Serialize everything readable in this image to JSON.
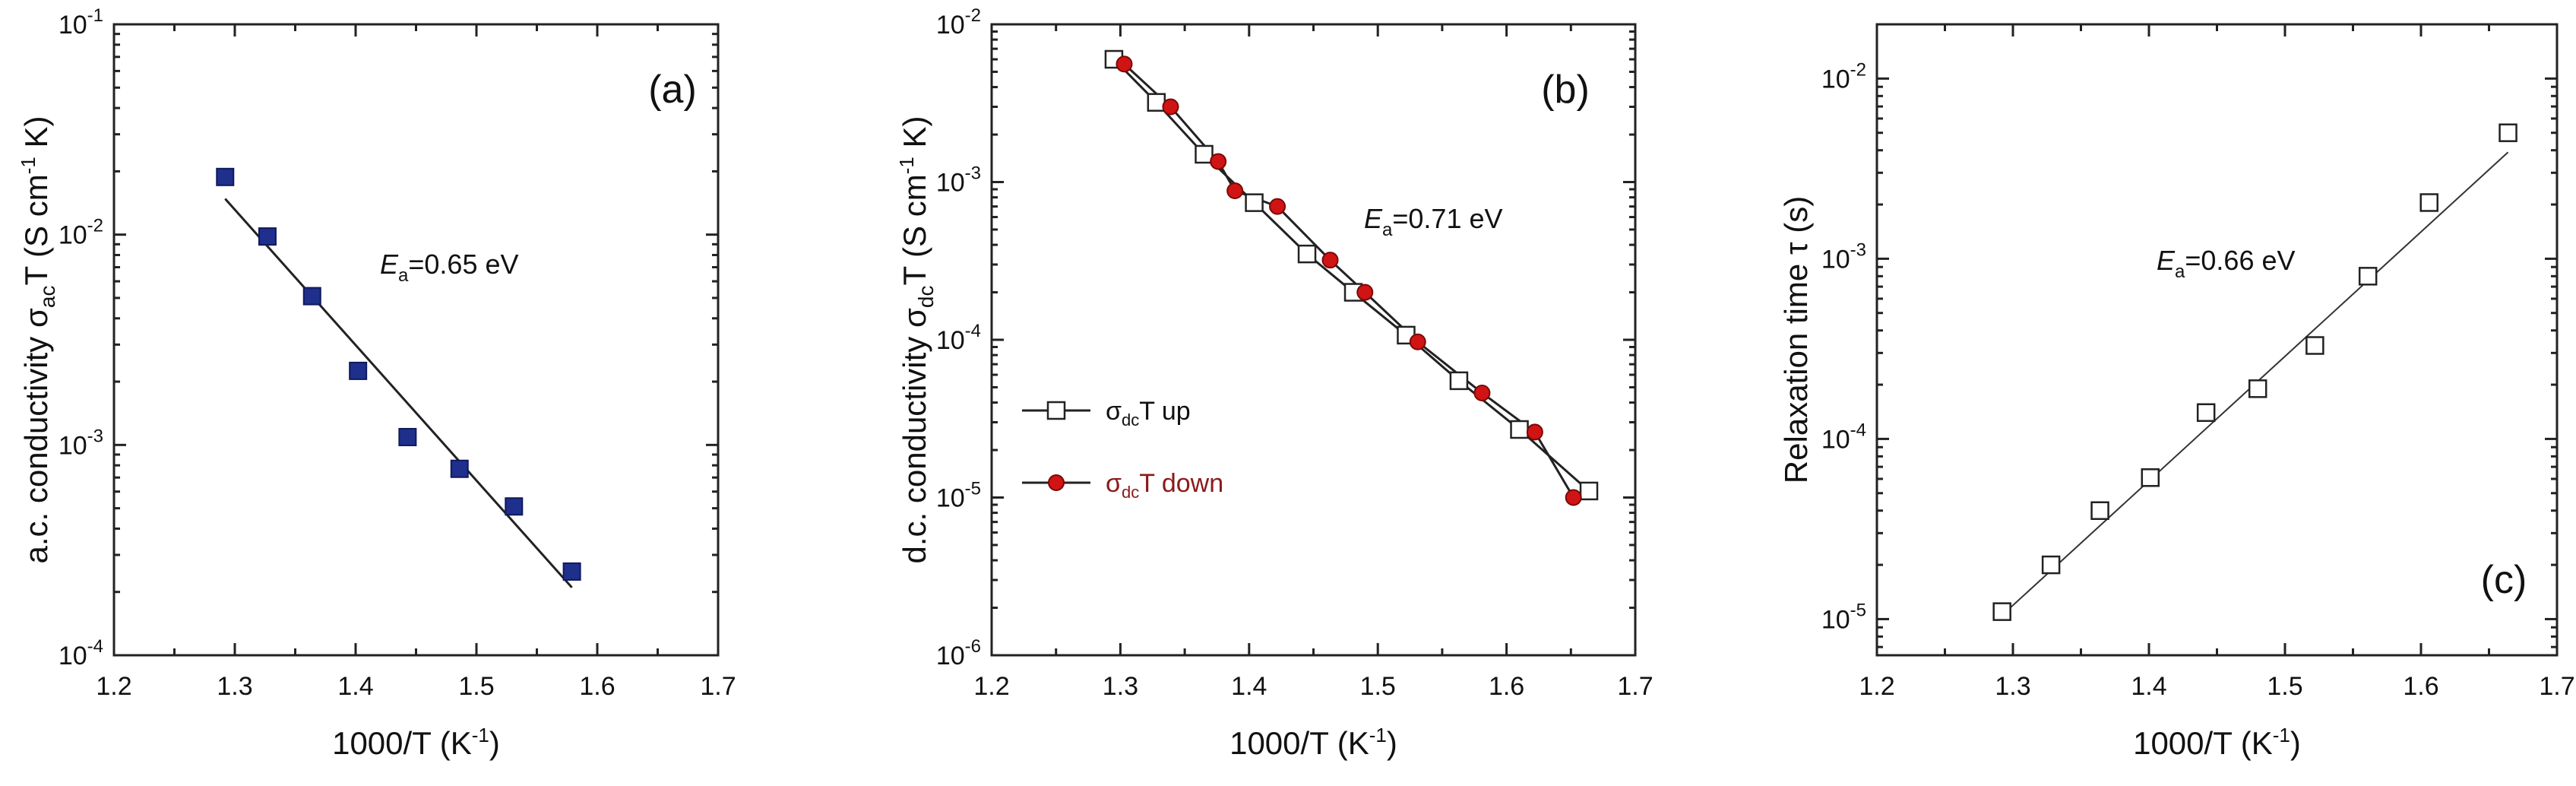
{
  "colors": {
    "axis": "#222222",
    "square_fill_a": "#1f2f8c",
    "square_stroke_a": "#10195a",
    "circle_fill": "#d01414",
    "circle_stroke": "#7a0808",
    "open_square": "#ffffff",
    "legend_down_text": "#8b1a1a"
  },
  "chart_data": [
    {
      "id": "a",
      "type": "scatter",
      "panel_label": "(a)",
      "xlabel": "1000/T (K⁻¹)",
      "ylabel": "a.c. conductivity σₐᴄT (S cm⁻¹ K)",
      "ylabel_parts": [
        "a.c. conductivity ",
        "σ",
        "ac",
        "T (S cm",
        "-1",
        " K)"
      ],
      "xlim": [
        1.2,
        1.7
      ],
      "ylim": [
        0.0001,
        0.1
      ],
      "yscale": "log",
      "xticks": [
        "1.2",
        "1.3",
        "1.4",
        "1.5",
        "1.6",
        "1.7"
      ],
      "yticks": [
        {
          "base": "10",
          "exp": "-4"
        },
        {
          "base": "10",
          "exp": "-3"
        },
        {
          "base": "10",
          "exp": "-2"
        },
        {
          "base": "10",
          "exp": "-1"
        }
      ],
      "annotation": {
        "symbol": "E",
        "sub": "a",
        "text": "=0.65 eV"
      },
      "series": [
        {
          "name": "σacT",
          "marker": "filled-square",
          "x": [
            1.292,
            1.327,
            1.364,
            1.402,
            1.443,
            1.486,
            1.531,
            1.579
          ],
          "y": [
            0.0188,
            0.0098,
            0.0051,
            0.00225,
            0.00109,
            0.00077,
            0.00051,
            0.00025
          ]
        }
      ],
      "fit": {
        "x": [
          1.292,
          1.579
        ],
        "y": [
          0.0148,
          0.00021
        ]
      }
    },
    {
      "id": "b",
      "type": "line",
      "panel_label": "(b)",
      "xlabel": "1000/T (K⁻¹)",
      "ylabel_parts": [
        "d.c. conductivity ",
        "σ",
        "dc",
        "T (S cm",
        "-1",
        " K)"
      ],
      "xlim": [
        1.2,
        1.7
      ],
      "ylim": [
        1e-06,
        0.01
      ],
      "yscale": "log",
      "xticks": [
        "1.2",
        "1.3",
        "1.4",
        "1.5",
        "1.6",
        "1.7"
      ],
      "yticks": [
        {
          "base": "10",
          "exp": "-6"
        },
        {
          "base": "10",
          "exp": "-5"
        },
        {
          "base": "10",
          "exp": "-4"
        },
        {
          "base": "10",
          "exp": "-3"
        },
        {
          "base": "10",
          "exp": "-2"
        }
      ],
      "annotation": {
        "symbol": "E",
        "sub": "a",
        "text": "=0.71 eV"
      },
      "legend": [
        {
          "symbol": "σ",
          "sub": "dc",
          "text": "T up"
        },
        {
          "symbol": "σ",
          "sub": "dc",
          "text": "T down"
        }
      ],
      "series": [
        {
          "name": "σdcT up",
          "marker": "open-square",
          "x": [
            1.295,
            1.328,
            1.365,
            1.404,
            1.445,
            1.481,
            1.522,
            1.563,
            1.61,
            1.664
          ],
          "y": [
            0.006,
            0.0032,
            0.0015,
            0.00074,
            0.00035,
            0.0002,
            0.000107,
            5.5e-05,
            2.7e-05,
            1.1e-05
          ]
        },
        {
          "name": "σdcT down",
          "marker": "filled-circle",
          "x": [
            1.303,
            1.339,
            1.376,
            1.389,
            1.422,
            1.463,
            1.49,
            1.531,
            1.581,
            1.622,
            1.652
          ],
          "y": [
            0.0056,
            0.003,
            0.00135,
            0.00088,
            0.0007,
            0.00032,
            0.0002,
            9.7e-05,
            4.6e-05,
            2.6e-05,
            1e-05
          ]
        }
      ]
    },
    {
      "id": "c",
      "type": "scatter",
      "panel_label": "(c)",
      "xlabel": "1000/T (K⁻¹)",
      "ylabel": "Relaxation time τ (s)",
      "xlim": [
        1.2,
        1.7
      ],
      "ylim": [
        6.3e-06,
        0.02
      ],
      "yscale": "log",
      "xticks": [
        "1.2",
        "1.3",
        "1.4",
        "1.5",
        "1.6",
        "1.7"
      ],
      "yticks": [
        {
          "base": "10",
          "exp": "-5"
        },
        {
          "base": "10",
          "exp": "-4"
        },
        {
          "base": "10",
          "exp": "-3"
        },
        {
          "base": "10",
          "exp": "-2"
        }
      ],
      "annotation": {
        "symbol": "E",
        "sub": "a",
        "text": "=0.66 eV"
      },
      "series": [
        {
          "name": "τ",
          "marker": "open-square",
          "x": [
            1.292,
            1.328,
            1.364,
            1.401,
            1.442,
            1.48,
            1.522,
            1.561,
            1.606,
            1.664
          ],
          "y": [
            1.1e-05,
            2e-05,
            4e-05,
            6.1e-05,
            0.00014,
            0.00019,
            0.00033,
            0.0008,
            0.00205,
            0.005
          ]
        }
      ],
      "fit": {
        "x": [
          1.292,
          1.664
        ],
        "y": [
          1.05e-05,
          0.0039
        ]
      }
    }
  ]
}
